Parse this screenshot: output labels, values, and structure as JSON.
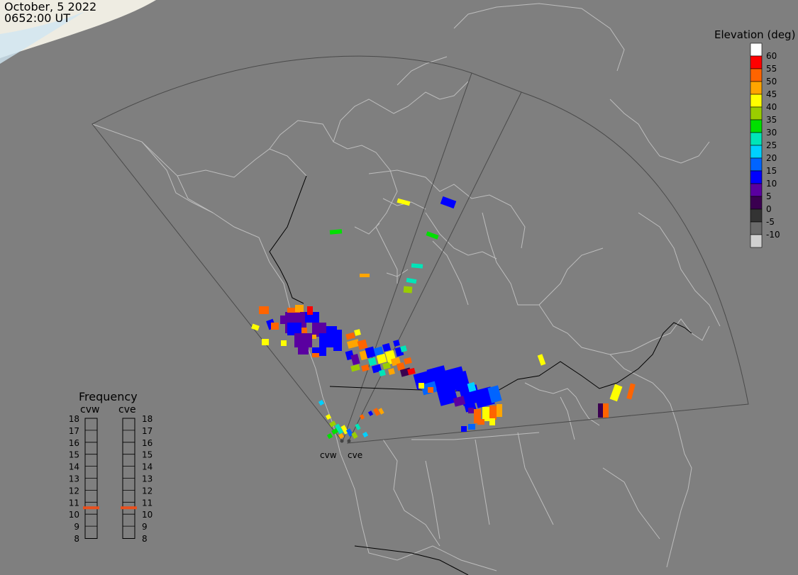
{
  "header": {
    "date": "October, 5 2022",
    "time": "0652:00 UT"
  },
  "colors": {
    "background": "#7f7f7f",
    "land_outline": "#bdbdbd",
    "fov_outline": "#4a4a4a",
    "border": "#000000",
    "frequency_marker": "#e8501e"
  },
  "legend": {
    "title": "Elevation (deg)",
    "bins": [
      {
        "label": "60",
        "color": "#ffffff"
      },
      {
        "label": "55",
        "color": "#ff0000"
      },
      {
        "label": "50",
        "color": "#ff6400"
      },
      {
        "label": "45",
        "color": "#ffa500"
      },
      {
        "label": "40",
        "color": "#ffff00"
      },
      {
        "label": "35",
        "color": "#9acd00"
      },
      {
        "label": "30",
        "color": "#00e000"
      },
      {
        "label": "25",
        "color": "#00e5b8"
      },
      {
        "label": "20",
        "color": "#00d0ff"
      },
      {
        "label": "15",
        "color": "#0064ff"
      },
      {
        "label": "10",
        "color": "#0000ff"
      },
      {
        "label": "5",
        "color": "#5a00a0"
      },
      {
        "label": "0",
        "color": "#3a0050"
      },
      {
        "label": "-5",
        "color": "#333333"
      },
      {
        "label": "-10",
        "color": "#6a6a6a"
      },
      {
        "label": "",
        "color": "#d0d0d0"
      }
    ]
  },
  "frequency": {
    "title": "Frequency",
    "radars": [
      {
        "name": "cvw",
        "marked_mhz": 11
      },
      {
        "name": "cve",
        "marked_mhz": 11
      }
    ],
    "scale_mhz": [
      "18",
      "17",
      "16",
      "15",
      "14",
      "13",
      "12",
      "11",
      "10",
      "9",
      "8"
    ]
  },
  "radars": [
    {
      "code": "cvw"
    },
    {
      "code": "cve"
    }
  ]
}
